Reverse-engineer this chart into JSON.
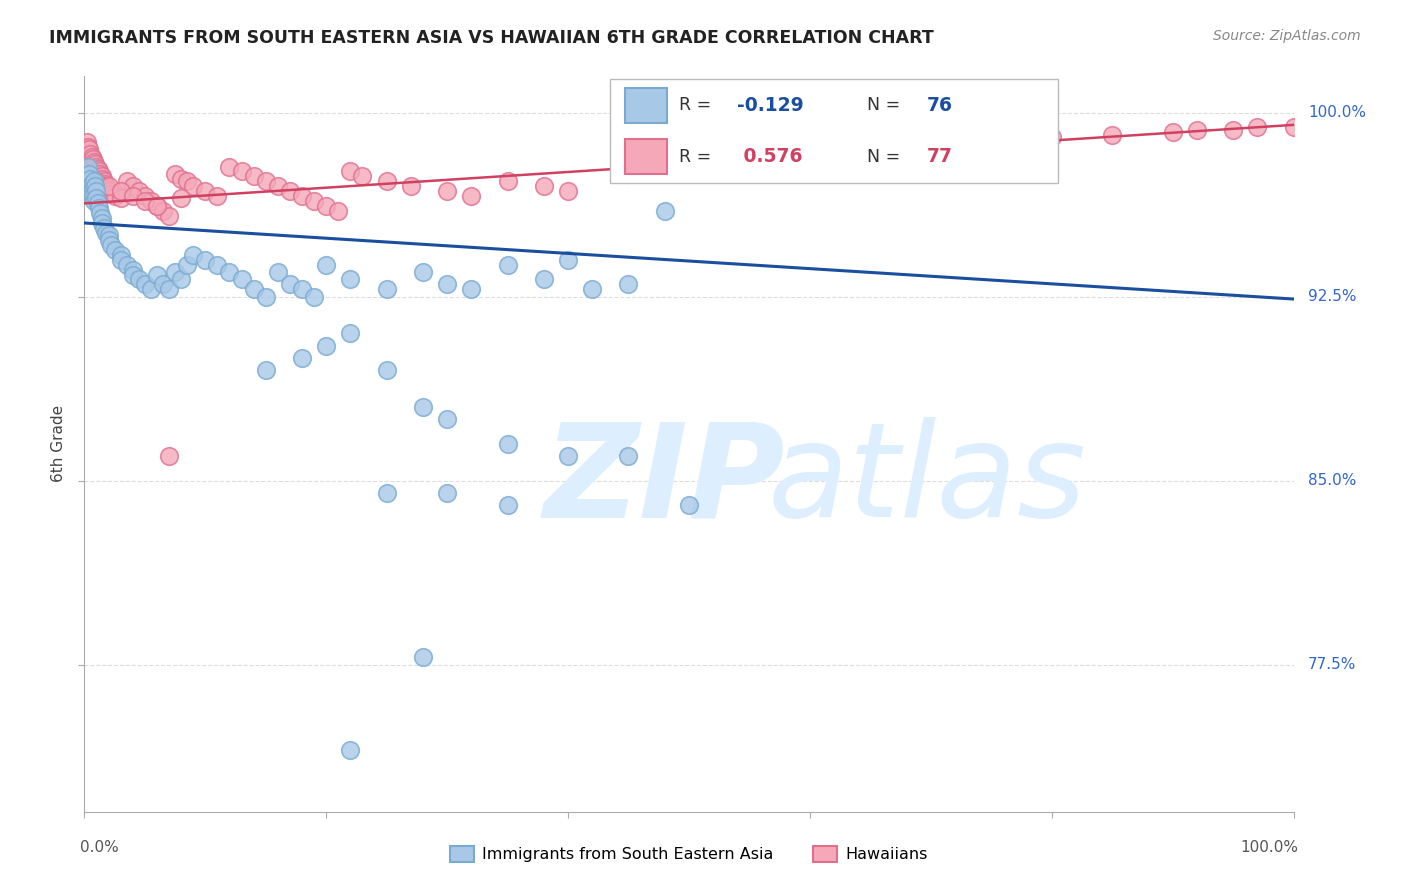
{
  "title": "IMMIGRANTS FROM SOUTH EASTERN ASIA VS HAWAIIAN 6TH GRADE CORRELATION CHART",
  "source": "Source: ZipAtlas.com",
  "ylabel": "6th Grade",
  "xlim": [
    0.0,
    1.0
  ],
  "ylim": [
    0.715,
    1.015
  ],
  "yticks": [
    0.775,
    0.85,
    0.925,
    1.0
  ],
  "ytick_labels": [
    "77.5%",
    "85.0%",
    "92.5%",
    "100.0%"
  ],
  "legend_label1": "Immigrants from South Eastern Asia",
  "legend_label2": "Hawaiians",
  "R1": -0.129,
  "N1": 76,
  "R2": 0.576,
  "N2": 77,
  "blue_face": "#A8C8E8",
  "blue_edge": "#7AAAD0",
  "pink_face": "#F4A8B8",
  "pink_edge": "#E07090",
  "blue_line_color": "#1A4E9E",
  "pink_line_color": "#D04060",
  "blue_line_y0": 0.955,
  "blue_line_y1": 0.924,
  "pink_line_y0": 0.963,
  "pink_line_y1": 0.995,
  "title_color": "#222222",
  "source_color": "#888888",
  "ylabel_color": "#444444",
  "axis_color": "#AAAAAA",
  "grid_color": "#DDDDDD",
  "ytick_label_color": "#3366CC",
  "xtick_label_color": "#555555",
  "legend_r_color": "#1A4E9E",
  "legend_r2_color": "#D04060",
  "watermark_color": "#DDEEFF",
  "blue_x": [
    0.003,
    0.004,
    0.005,
    0.005,
    0.006,
    0.007,
    0.007,
    0.008,
    0.008,
    0.009,
    0.01,
    0.01,
    0.011,
    0.012,
    0.013,
    0.015,
    0.015,
    0.016,
    0.018,
    0.02,
    0.02,
    0.022,
    0.025,
    0.03,
    0.03,
    0.035,
    0.04,
    0.04,
    0.045,
    0.05,
    0.055,
    0.06,
    0.065,
    0.07,
    0.075,
    0.08,
    0.085,
    0.09,
    0.1,
    0.11,
    0.12,
    0.13,
    0.14,
    0.15,
    0.16,
    0.17,
    0.18,
    0.19,
    0.2,
    0.22,
    0.25,
    0.28,
    0.3,
    0.32,
    0.35,
    0.38,
    0.4,
    0.42,
    0.45,
    0.48,
    0.15,
    0.18,
    0.2,
    0.22,
    0.25,
    0.28,
    0.3,
    0.35,
    0.4,
    0.45,
    0.25,
    0.3,
    0.35,
    0.5,
    0.28,
    0.22
  ],
  "blue_y": [
    0.978,
    0.975,
    0.973,
    0.968,
    0.971,
    0.969,
    0.966,
    0.964,
    0.972,
    0.97,
    0.968,
    0.965,
    0.963,
    0.961,
    0.959,
    0.957,
    0.955,
    0.953,
    0.951,
    0.95,
    0.948,
    0.946,
    0.944,
    0.942,
    0.94,
    0.938,
    0.936,
    0.934,
    0.932,
    0.93,
    0.928,
    0.934,
    0.93,
    0.928,
    0.935,
    0.932,
    0.938,
    0.942,
    0.94,
    0.938,
    0.935,
    0.932,
    0.928,
    0.925,
    0.935,
    0.93,
    0.928,
    0.925,
    0.938,
    0.932,
    0.928,
    0.935,
    0.93,
    0.928,
    0.938,
    0.932,
    0.94,
    0.928,
    0.93,
    0.96,
    0.895,
    0.9,
    0.905,
    0.91,
    0.895,
    0.88,
    0.875,
    0.865,
    0.86,
    0.86,
    0.845,
    0.845,
    0.84,
    0.84,
    0.778,
    0.74
  ],
  "pink_x": [
    0.002,
    0.003,
    0.004,
    0.005,
    0.006,
    0.007,
    0.008,
    0.009,
    0.01,
    0.011,
    0.012,
    0.013,
    0.015,
    0.015,
    0.016,
    0.017,
    0.018,
    0.019,
    0.02,
    0.022,
    0.025,
    0.03,
    0.035,
    0.04,
    0.045,
    0.05,
    0.055,
    0.06,
    0.065,
    0.07,
    0.075,
    0.08,
    0.085,
    0.09,
    0.1,
    0.11,
    0.12,
    0.13,
    0.14,
    0.15,
    0.16,
    0.17,
    0.18,
    0.19,
    0.2,
    0.21,
    0.22,
    0.23,
    0.25,
    0.27,
    0.3,
    0.32,
    0.35,
    0.38,
    0.4,
    0.45,
    0.5,
    0.55,
    0.6,
    0.65,
    0.7,
    0.75,
    0.8,
    0.85,
    0.9,
    0.92,
    0.95,
    0.97,
    1.0,
    0.01,
    0.02,
    0.03,
    0.04,
    0.05,
    0.06,
    0.07,
    0.08
  ],
  "pink_y": [
    0.988,
    0.986,
    0.985,
    0.983,
    0.982,
    0.981,
    0.98,
    0.979,
    0.978,
    0.977,
    0.976,
    0.975,
    0.974,
    0.973,
    0.972,
    0.971,
    0.97,
    0.969,
    0.968,
    0.967,
    0.966,
    0.965,
    0.972,
    0.97,
    0.968,
    0.966,
    0.964,
    0.962,
    0.96,
    0.958,
    0.975,
    0.973,
    0.972,
    0.97,
    0.968,
    0.966,
    0.978,
    0.976,
    0.974,
    0.972,
    0.97,
    0.968,
    0.966,
    0.964,
    0.962,
    0.96,
    0.976,
    0.974,
    0.972,
    0.97,
    0.968,
    0.966,
    0.972,
    0.97,
    0.968,
    0.975,
    0.978,
    0.982,
    0.985,
    0.988,
    0.987,
    0.989,
    0.99,
    0.991,
    0.992,
    0.993,
    0.993,
    0.994,
    0.994,
    0.972,
    0.97,
    0.968,
    0.966,
    0.964,
    0.962,
    0.86,
    0.965
  ]
}
